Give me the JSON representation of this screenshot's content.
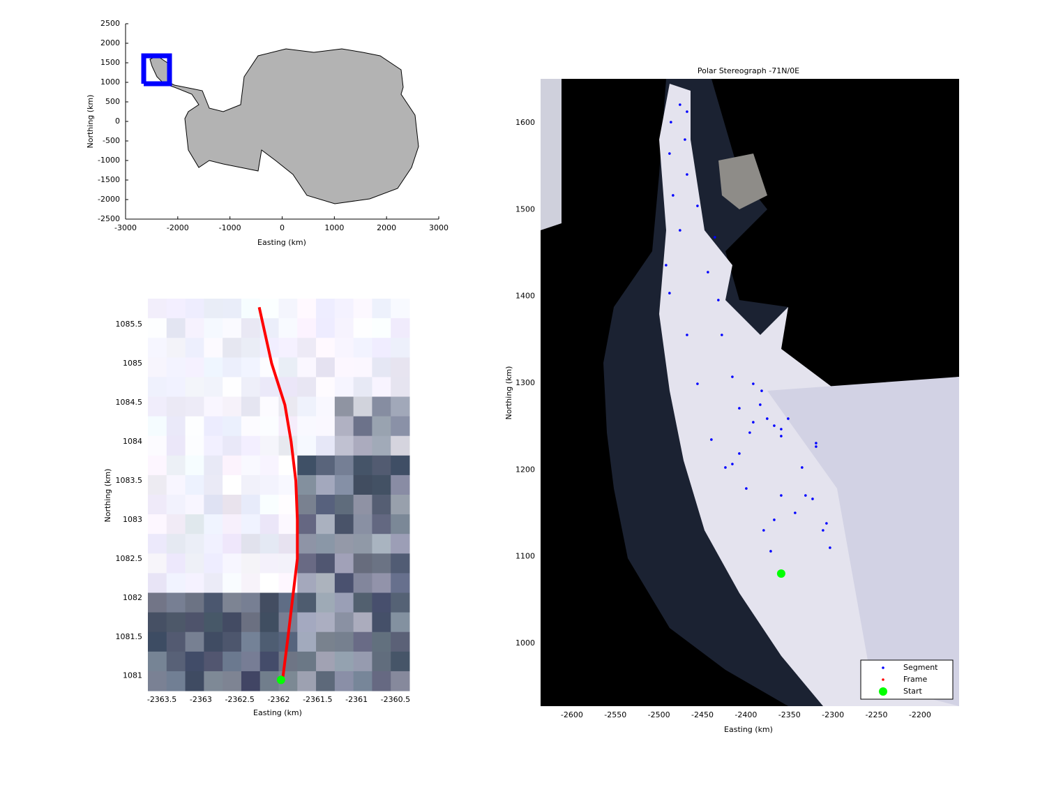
{
  "chart_data": [
    {
      "type": "map",
      "xlabel": "Easting (km)",
      "ylabel": "Northing (km)",
      "xlim": [
        -3000,
        3000
      ],
      "ylim": [
        -2500,
        2500
      ],
      "xticks": [
        -3000,
        -2000,
        -1000,
        0,
        1000,
        2000,
        3000
      ],
      "yticks": [
        -2500,
        -2000,
        -1500,
        -1000,
        -500,
        0,
        500,
        1000,
        1500,
        2000,
        2500
      ],
      "axis_lines": true,
      "series": [
        {
          "color": "#0000ff",
          "style": "line",
          "x": [
            -2652,
            -2158,
            -2158,
            -2652,
            -2652
          ],
          "y": [
            964,
            964,
            1679,
            1679,
            964
          ]
        }
      ]
    },
    {
      "type": "map",
      "xlabel": "Easting (km)",
      "ylabel": "Northing (km)",
      "xlim": [
        -2363.68,
        -2360.32
      ],
      "ylim": [
        1080.81,
        1085.83
      ],
      "xticks": [
        -2363.5,
        -2363,
        -2362.5,
        -2362,
        -2361.5,
        -2361,
        -2360.5
      ],
      "yticks": [
        1081,
        1081.5,
        1082,
        1082.5,
        1083,
        1083.5,
        1084,
        1084.5,
        1085,
        1085.5
      ],
      "axis_lines": false,
      "series": [
        {
          "color": "#ff0000",
          "style": "line",
          "x": [
            -2362.25,
            -2362.09,
            -2361.92,
            -2361.84,
            -2361.78,
            -2361.76,
            -2361.76,
            -2361.82,
            -2361.88,
            -2361.95
          ],
          "y": [
            1085.72,
            1085,
            1084.47,
            1084,
            1083.5,
            1083,
            1082.5,
            1082,
            1081.5,
            1080.95
          ]
        },
        {
          "color": "#00ff00",
          "style": "marker",
          "x": [
            -2361.97
          ],
          "y": [
            1080.95
          ]
        }
      ]
    },
    {
      "type": "map",
      "title": "Polar Stereograph -71N/0E",
      "xlabel": "Easting (km)",
      "ylabel": "Northing (km)",
      "xlim": [
        -2636,
        -2155
      ],
      "ylim": [
        927.6,
        1650.7
      ],
      "xticks": [
        -2600,
        -2550,
        -2500,
        -2450,
        -2400,
        -2350,
        -2300,
        -2250,
        -2200
      ],
      "yticks": [
        1000,
        1100,
        1200,
        1300,
        1400,
        1500,
        1600
      ],
      "axis_lines": false,
      "legend": "lower right",
      "series": [
        {
          "name": "Segment",
          "color": "#0000ff",
          "style": "dots",
          "x": [
            -2359.5,
            -2371.5,
            -2379.6,
            -2399.6,
            -2423.6,
            -2439.7,
            -2455.7,
            -2467.7,
            -2487.8,
            -2491.8,
            -2475.8,
            -2483.8,
            -2487.8,
            -2486.2,
            -2475.8,
            -2467.7,
            -2470.1,
            -2467.7,
            -2455.7,
            -2435.7,
            -2443.7,
            -2431.7,
            -2427.7,
            -2415.6,
            -2407.6,
            -2391.6,
            -2359.5,
            -2319.4,
            -2335.5,
            -2359.5,
            -2367.5,
            -2343.5,
            -2323.4,
            -2307.4,
            -2303.4,
            -2311.4,
            -2331.5,
            -2319.4,
            -2367.5,
            -2407.6,
            -2415.6,
            -2395.6,
            -2383.6,
            -2391.6,
            -2381.9,
            -2375.6,
            -2351.5,
            -2359.5
          ],
          "y": [
            1080.4,
            1106.2,
            1130.3,
            1178.5,
            1202.7,
            1234.9,
            1299.2,
            1355.5,
            1403.7,
            1435.9,
            1476.1,
            1516.4,
            1564.6,
            1600.8,
            1620.9,
            1612.9,
            1580.7,
            1540.5,
            1504.3,
            1468.1,
            1427.9,
            1395.7,
            1355.5,
            1307.2,
            1271.0,
            1254.9,
            1238.9,
            1230.8,
            1202.7,
            1170.5,
            1142.4,
            1150.4,
            1166.5,
            1138.3,
            1110.2,
            1130.3,
            1170.5,
            1226.8,
            1250.9,
            1218.8,
            1206.7,
            1242.9,
            1275.1,
            1299.2,
            1291.1,
            1259.0,
            1259.0,
            1246.9
          ]
        },
        {
          "name": "Frame",
          "color": "#ff0000",
          "style": "dots",
          "x": [
            -2359.5
          ],
          "y": [
            1080.4
          ]
        },
        {
          "name": "Start",
          "color": "#00ff00",
          "style": "marker",
          "x": [
            -2359.5
          ],
          "y": [
            1080.4
          ]
        }
      ]
    }
  ]
}
